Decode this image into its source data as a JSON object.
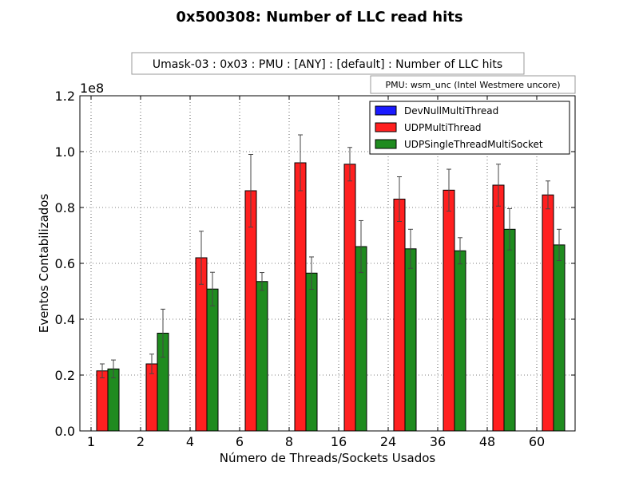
{
  "chart_data": {
    "type": "bar",
    "title": "0x500308: Number of LLC read hits",
    "subtitle": "Umask-03 : 0x03 : PMU : [ANY] : [default] : Number of LLC hits",
    "pmu_note": "PMU: wsm_unc (Intel Westmere uncore)",
    "xlabel": "Número de Threads/Sockets Usados",
    "ylabel": "Eventos Contabilizados",
    "y_multiplier_label": "1e8",
    "ylim": [
      0,
      1.2
    ],
    "yticks": [
      "0.0",
      "0.2",
      "0.4",
      "0.6",
      "0.8",
      "1.0",
      "1.2"
    ],
    "grid": true,
    "legend_position": "top-right",
    "categories": [
      "1",
      "2",
      "4",
      "6",
      "8",
      "16",
      "24",
      "36",
      "48",
      "60"
    ],
    "series": [
      {
        "name": "DevNullMultiThread",
        "color": "#1a1aff",
        "values": [
          0,
          0,
          0,
          0,
          0,
          0,
          0,
          0,
          0,
          0
        ],
        "errors": [
          0,
          0,
          0,
          0,
          0,
          0,
          0,
          0,
          0,
          0
        ]
      },
      {
        "name": "UDPMultiThread",
        "color": "#ff2020",
        "values": [
          0.215,
          0.24,
          0.62,
          0.86,
          0.96,
          0.955,
          0.83,
          0.862,
          0.88,
          0.845
        ],
        "errors": [
          0.025,
          0.035,
          0.095,
          0.13,
          0.1,
          0.06,
          0.08,
          0.075,
          0.075,
          0.05
        ]
      },
      {
        "name": "UDPSingleThreadMultiSocket",
        "color": "#1f8b1f",
        "values": [
          0.222,
          0.35,
          0.508,
          0.535,
          0.565,
          0.66,
          0.652,
          0.645,
          0.722,
          0.666
        ],
        "errors": [
          0.032,
          0.086,
          0.06,
          0.032,
          0.058,
          0.093,
          0.07,
          0.047,
          0.074,
          0.056
        ]
      }
    ]
  }
}
